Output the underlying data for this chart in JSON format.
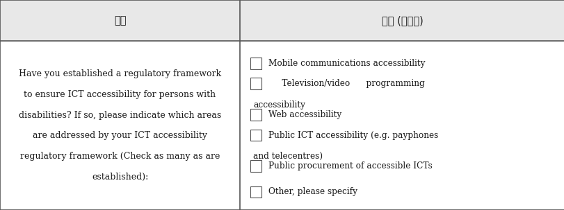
{
  "header_col1": "질문",
  "header_col2": "답변 (선택식)",
  "header_bg": "#e8e8e8",
  "cell_bg": "#ffffff",
  "border_color": "#555555",
  "text_color": "#1a1a1a",
  "question_lines": [
    "Have you established a regulatory framework",
    "to ensure ICT accessibility for persons with",
    "disabilities? If so, please indicate which areas",
    "are addressed by your ICT accessibility",
    "regulatory framework (Check as many as are",
    "established):"
  ],
  "answers": [
    [
      "Mobile communications accessibility"
    ],
    [
      "     Television/video      programming",
      "accessibility"
    ],
    [
      "Web accessibility"
    ],
    [
      "Public ICT accessibility (e.g. payphones",
      "and telecentres)"
    ],
    [
      "Public procurement of accessible ICTs"
    ],
    [
      "Other, please specify"
    ]
  ],
  "col_split": 0.425,
  "figsize": [
    8.12,
    3.03
  ],
  "dpi": 100,
  "header_fontsize": 10.5,
  "body_fontsize": 9.0
}
